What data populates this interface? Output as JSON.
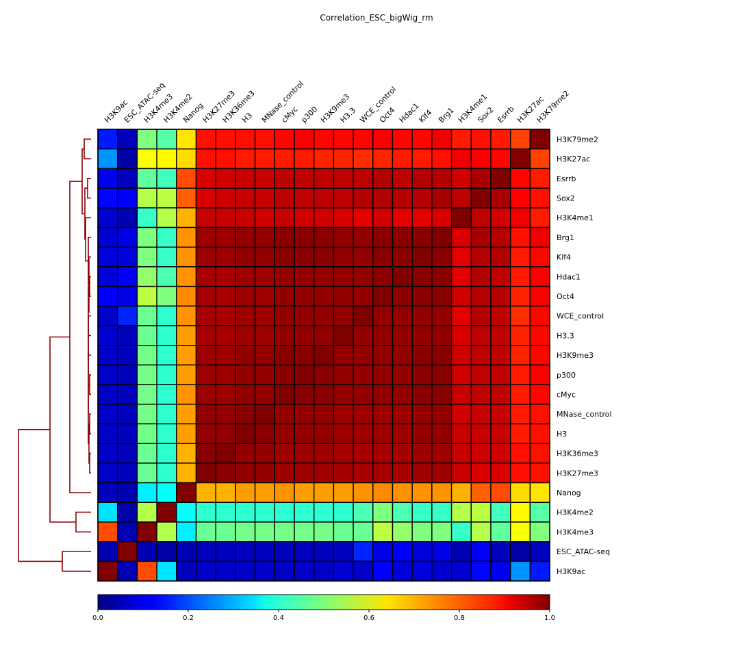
{
  "chart_data": {
    "type": "heatmap",
    "title": "Correlation_ESC_bigWig_rm",
    "column_labels": [
      "H3K9ac",
      "ESC_ATAC-seq",
      "H3K4me3",
      "H3K4me2",
      "Nanog",
      "H3K27me3",
      "H3K36me3",
      "H3",
      "MNase_control",
      "cMyc",
      "p300",
      "H3K9me3",
      "H3.3",
      "WCE_control",
      "Oct4",
      "Hdac1",
      "Klf4",
      "Brg1",
      "H3K4me1",
      "Sox2",
      "Esrrb",
      "H3K27ac",
      "H3K79me2"
    ],
    "row_labels": [
      "H3K79me2",
      "H3K27ac",
      "Esrrb",
      "Sox2",
      "H3K4me1",
      "Brg1",
      "Klf4",
      "Hdac1",
      "Oct4",
      "WCE_control",
      "H3.3",
      "H3K9me3",
      "p300",
      "cMyc",
      "MNase_control",
      "H3",
      "H3K36me3",
      "H3K27me3",
      "Nanog",
      "H3K4me2",
      "H3K4me3",
      "ESC_ATAC-seq",
      "H3K9ac"
    ],
    "values": [
      [
        0.15,
        0.06,
        0.5,
        0.46,
        0.65,
        0.86,
        0.86,
        0.86,
        0.86,
        0.87,
        0.88,
        0.87,
        0.87,
        0.87,
        0.88,
        0.87,
        0.87,
        0.89,
        0.85,
        0.86,
        0.85,
        0.81,
        1.0
      ],
      [
        0.27,
        0.04,
        0.62,
        0.63,
        0.66,
        0.86,
        0.86,
        0.85,
        0.85,
        0.85,
        0.85,
        0.84,
        0.84,
        0.83,
        0.84,
        0.85,
        0.85,
        0.86,
        0.89,
        0.88,
        0.87,
        1.0,
        0.81
      ],
      [
        0.11,
        0.06,
        0.47,
        0.44,
        0.8,
        0.91,
        0.92,
        0.93,
        0.93,
        0.94,
        0.94,
        0.94,
        0.94,
        0.94,
        0.95,
        0.94,
        0.95,
        0.95,
        0.92,
        0.96,
        1.0,
        0.87,
        0.85
      ],
      [
        0.13,
        0.12,
        0.55,
        0.56,
        0.78,
        0.91,
        0.92,
        0.93,
        0.93,
        0.94,
        0.94,
        0.94,
        0.94,
        0.95,
        0.95,
        0.95,
        0.95,
        0.96,
        0.94,
        1.0,
        0.96,
        0.88,
        0.86
      ],
      [
        0.08,
        0.05,
        0.43,
        0.55,
        0.7,
        0.93,
        0.93,
        0.93,
        0.92,
        0.93,
        0.92,
        0.92,
        0.91,
        0.9,
        0.92,
        0.9,
        0.9,
        0.91,
        1.0,
        0.94,
        0.92,
        0.89,
        0.85
      ],
      [
        0.08,
        0.1,
        0.5,
        0.43,
        0.73,
        0.97,
        0.97,
        0.98,
        0.98,
        0.99,
        0.99,
        0.99,
        0.98,
        0.98,
        0.99,
        0.99,
        0.99,
        1.0,
        0.91,
        0.96,
        0.95,
        0.86,
        0.89
      ],
      [
        0.09,
        0.09,
        0.5,
        0.43,
        0.73,
        0.97,
        0.97,
        0.98,
        0.98,
        0.99,
        0.99,
        0.99,
        0.98,
        0.98,
        0.99,
        0.99,
        1.0,
        0.99,
        0.9,
        0.95,
        0.95,
        0.85,
        0.87
      ],
      [
        0.09,
        0.12,
        0.52,
        0.45,
        0.73,
        0.96,
        0.96,
        0.97,
        0.97,
        0.98,
        0.98,
        0.98,
        0.98,
        0.98,
        0.99,
        1.0,
        0.99,
        0.99,
        0.9,
        0.95,
        0.94,
        0.85,
        0.88
      ],
      [
        0.12,
        0.1,
        0.56,
        0.5,
        0.74,
        0.96,
        0.96,
        0.97,
        0.97,
        0.98,
        0.98,
        0.98,
        0.98,
        0.98,
        1.0,
        0.99,
        0.99,
        0.99,
        0.92,
        0.95,
        0.95,
        0.84,
        0.88
      ],
      [
        0.07,
        0.16,
        0.48,
        0.42,
        0.73,
        0.96,
        0.96,
        0.97,
        0.97,
        0.98,
        0.98,
        0.98,
        0.98,
        1.0,
        0.98,
        0.98,
        0.98,
        0.98,
        0.9,
        0.95,
        0.94,
        0.83,
        0.87
      ],
      [
        0.08,
        0.06,
        0.48,
        0.42,
        0.72,
        0.96,
        0.96,
        0.97,
        0.97,
        0.98,
        0.98,
        0.98,
        1.0,
        0.98,
        0.98,
        0.98,
        0.98,
        0.98,
        0.91,
        0.94,
        0.94,
        0.84,
        0.87
      ],
      [
        0.07,
        0.06,
        0.49,
        0.42,
        0.72,
        0.97,
        0.97,
        0.98,
        0.98,
        0.99,
        0.99,
        1.0,
        0.98,
        0.98,
        0.98,
        0.98,
        0.99,
        0.99,
        0.92,
        0.94,
        0.94,
        0.84,
        0.87
      ],
      [
        0.07,
        0.06,
        0.49,
        0.42,
        0.72,
        0.97,
        0.97,
        0.98,
        0.98,
        0.99,
        1.0,
        0.99,
        0.98,
        0.98,
        0.98,
        0.98,
        0.99,
        0.99,
        0.92,
        0.94,
        0.94,
        0.85,
        0.88
      ],
      [
        0.07,
        0.06,
        0.49,
        0.42,
        0.73,
        0.97,
        0.97,
        0.98,
        0.98,
        1.0,
        0.99,
        0.99,
        0.98,
        0.98,
        0.98,
        0.98,
        0.99,
        0.99,
        0.93,
        0.94,
        0.94,
        0.85,
        0.87
      ],
      [
        0.07,
        0.06,
        0.49,
        0.42,
        0.72,
        0.98,
        0.98,
        0.99,
        1.0,
        0.98,
        0.98,
        0.98,
        0.97,
        0.97,
        0.97,
        0.97,
        0.98,
        0.98,
        0.92,
        0.93,
        0.93,
        0.85,
        0.86
      ],
      [
        0.07,
        0.06,
        0.49,
        0.42,
        0.72,
        0.98,
        0.98,
        1.0,
        0.99,
        0.98,
        0.98,
        0.98,
        0.97,
        0.97,
        0.97,
        0.97,
        0.98,
        0.98,
        0.93,
        0.93,
        0.93,
        0.85,
        0.86
      ],
      [
        0.07,
        0.06,
        0.48,
        0.42,
        0.7,
        0.99,
        1.0,
        0.98,
        0.98,
        0.97,
        0.97,
        0.97,
        0.96,
        0.96,
        0.96,
        0.96,
        0.97,
        0.97,
        0.93,
        0.92,
        0.92,
        0.86,
        0.86
      ],
      [
        0.07,
        0.06,
        0.48,
        0.42,
        0.7,
        1.0,
        0.99,
        0.98,
        0.98,
        0.97,
        0.97,
        0.97,
        0.96,
        0.96,
        0.96,
        0.96,
        0.97,
        0.97,
        0.93,
        0.91,
        0.91,
        0.86,
        0.86
      ],
      [
        0.06,
        0.05,
        0.36,
        0.38,
        1.0,
        0.7,
        0.7,
        0.72,
        0.72,
        0.73,
        0.72,
        0.72,
        0.72,
        0.73,
        0.74,
        0.73,
        0.73,
        0.73,
        0.7,
        0.78,
        0.8,
        0.66,
        0.65
      ],
      [
        0.35,
        0.04,
        0.55,
        1.0,
        0.38,
        0.42,
        0.42,
        0.42,
        0.42,
        0.42,
        0.42,
        0.42,
        0.42,
        0.45,
        0.5,
        0.45,
        0.43,
        0.43,
        0.55,
        0.56,
        0.44,
        0.63,
        0.46
      ],
      [
        0.8,
        0.05,
        1.0,
        0.55,
        0.36,
        0.48,
        0.48,
        0.49,
        0.49,
        0.49,
        0.49,
        0.49,
        0.48,
        0.48,
        0.56,
        0.52,
        0.5,
        0.5,
        0.43,
        0.55,
        0.47,
        0.62,
        0.5
      ],
      [
        0.05,
        1.0,
        0.05,
        0.04,
        0.05,
        0.06,
        0.06,
        0.06,
        0.06,
        0.06,
        0.06,
        0.06,
        0.06,
        0.16,
        0.1,
        0.12,
        0.09,
        0.1,
        0.05,
        0.12,
        0.06,
        0.04,
        0.06
      ],
      [
        1.0,
        0.05,
        0.8,
        0.35,
        0.06,
        0.07,
        0.07,
        0.07,
        0.07,
        0.07,
        0.07,
        0.07,
        0.08,
        0.07,
        0.12,
        0.09,
        0.09,
        0.08,
        0.08,
        0.13,
        0.11,
        0.27,
        0.15
      ]
    ],
    "colormap": "jet",
    "colorbar": {
      "range": [
        0.0,
        1.0
      ],
      "ticks": [
        "0.0",
        "0.2",
        "0.4",
        "0.6",
        "0.8",
        "1.0"
      ]
    },
    "dendrogram_color": "#8b0000"
  }
}
